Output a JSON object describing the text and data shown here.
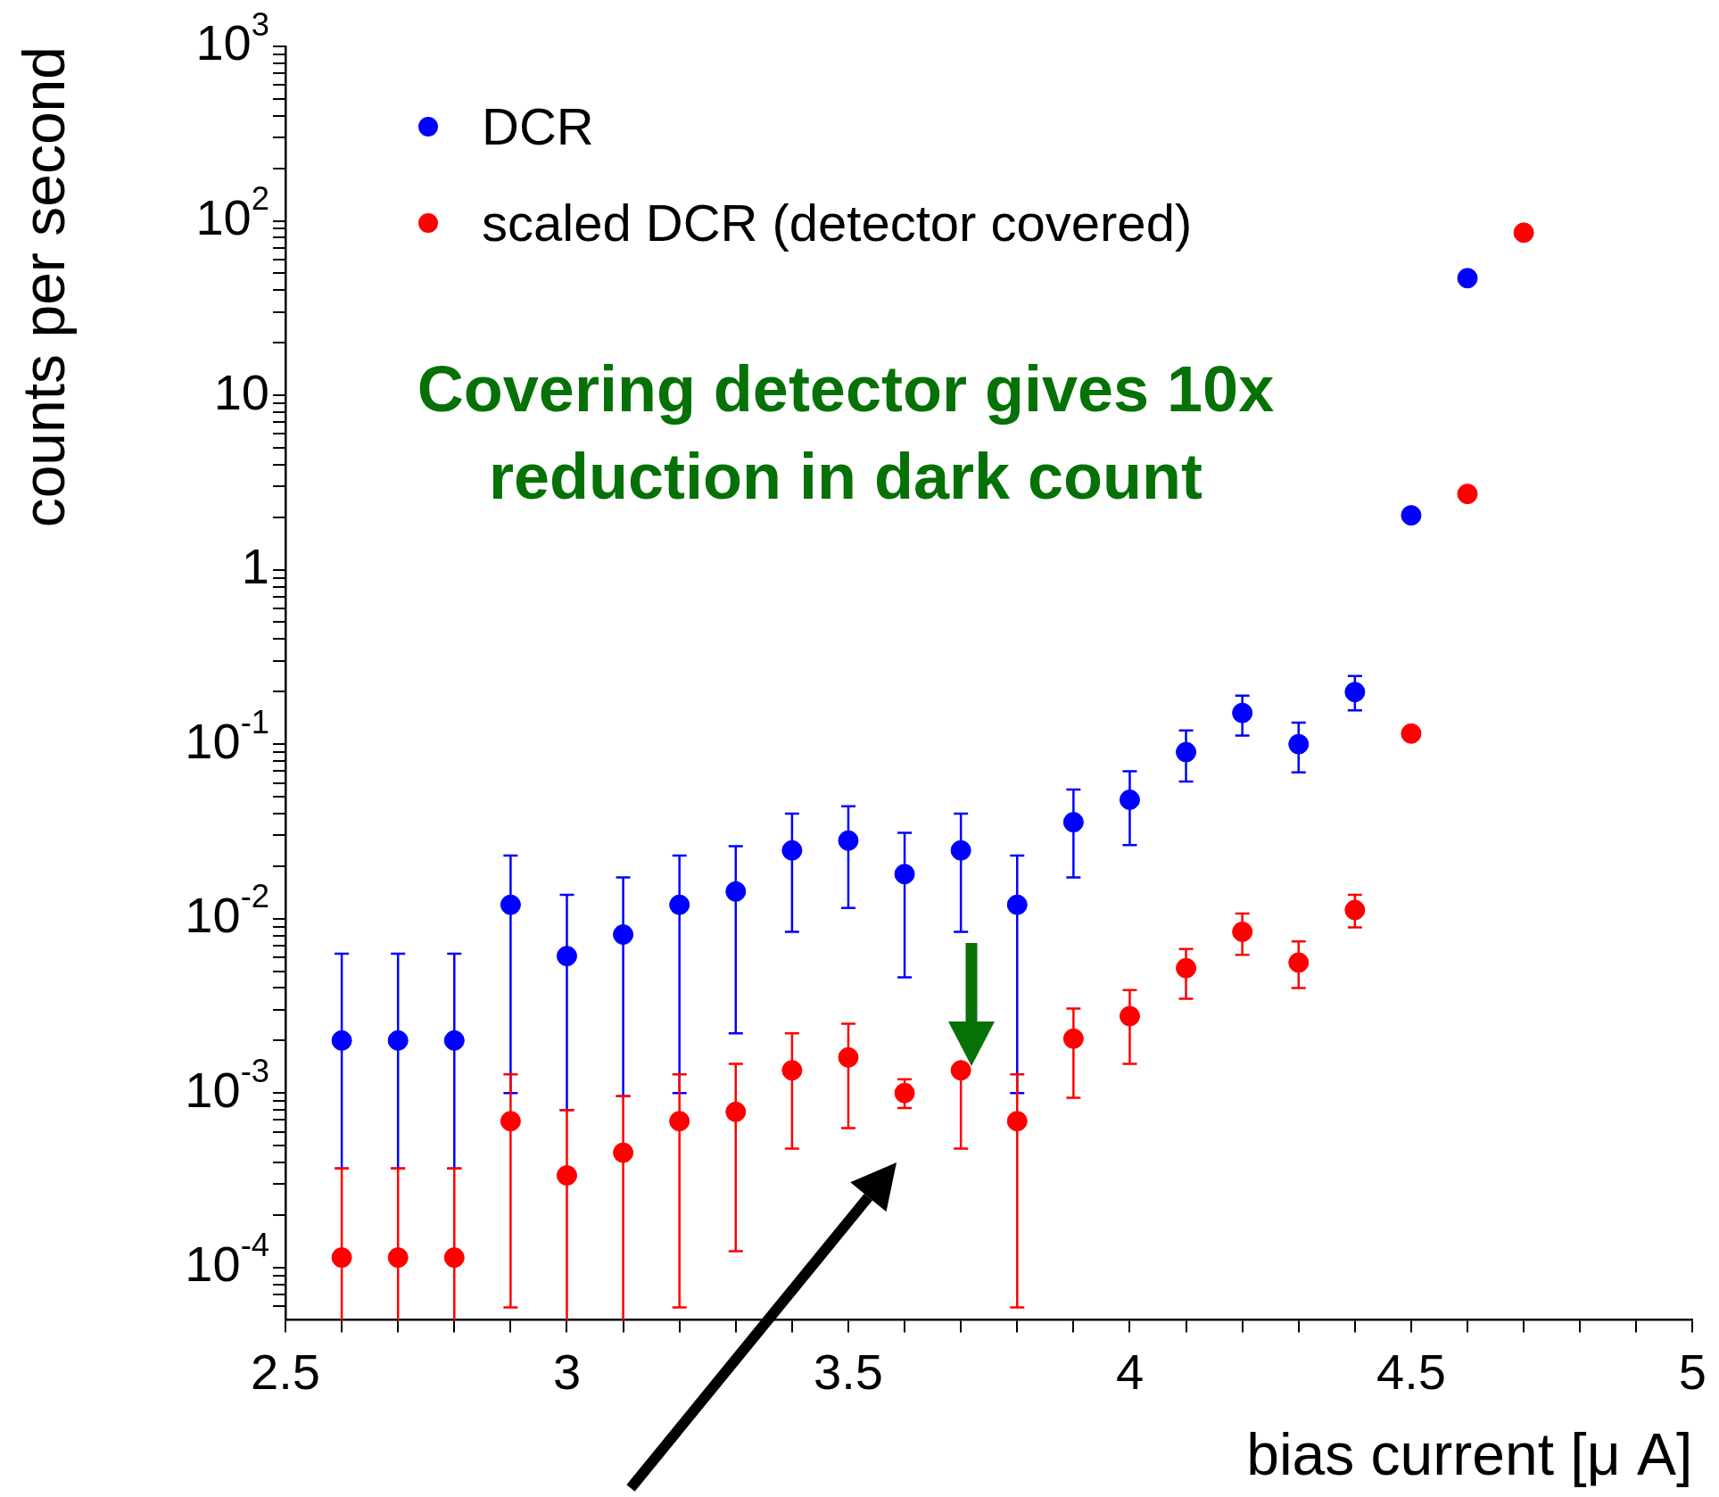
{
  "chart_data": {
    "type": "scatter",
    "xlabel": "bias current [μ A]",
    "ylabel": "counts per second",
    "annotations": [
      "Covering detector gives 10x reduction in dark count"
    ],
    "log": "y",
    "grid": false,
    "legend": "top left",
    "marker": "circle",
    "xlim": [
      2.5,
      5
    ],
    "ylim": [
      5e-05,
      1000
    ],
    "xticks": [
      2.5,
      {
        "value": 2.6,
        "label": null
      },
      {
        "value": 2.7,
        "label": null
      },
      {
        "value": 2.8,
        "label": null
      },
      {
        "value": 2.9,
        "label": null
      },
      3,
      {
        "value": 3.1,
        "label": null
      },
      {
        "value": 3.2,
        "label": null
      },
      {
        "value": 3.3,
        "label": null
      },
      {
        "value": 3.4,
        "label": null
      },
      3.5,
      {
        "value": 3.6,
        "label": null
      },
      {
        "value": 3.7,
        "label": null
      },
      {
        "value": 3.8,
        "label": null
      },
      {
        "value": 3.9,
        "label": null
      },
      4,
      {
        "value": 4.1,
        "label": null
      },
      {
        "value": 4.2,
        "label": null
      },
      {
        "value": 4.3,
        "label": null
      },
      {
        "value": 4.4,
        "label": null
      },
      4.5,
      {
        "value": 4.6,
        "label": null
      },
      {
        "value": 4.7,
        "label": null
      },
      {
        "value": 4.8,
        "label": null
      },
      {
        "value": 4.9,
        "label": null
      },
      5
    ],
    "yticks": [
      {
        "value": 6e-05,
        "label": null
      },
      {
        "value": 7e-05,
        "label": null
      },
      {
        "value": 8e-05,
        "label": null
      },
      {
        "value": 9e-05,
        "label": null
      },
      {
        "value": 0.0001,
        "label": "10$^{-4}$"
      },
      {
        "value": 0.0002,
        "label": null
      },
      {
        "value": 0.0003,
        "label": null
      },
      {
        "value": 0.0004,
        "label": null
      },
      {
        "value": 0.0005,
        "label": null
      },
      {
        "value": 0.0006,
        "label": null
      },
      {
        "value": 0.0007,
        "label": null
      },
      {
        "value": 0.0008,
        "label": null
      },
      {
        "value": 0.0009,
        "label": null
      },
      {
        "value": 0.001,
        "label": "10$^{-3}$"
      },
      {
        "value": 0.002,
        "label": null
      },
      {
        "value": 0.003,
        "label": null
      },
      {
        "value": 0.004,
        "label": null
      },
      {
        "value": 0.005,
        "label": null
      },
      {
        "value": 0.006,
        "label": null
      },
      {
        "value": 0.007,
        "label": null
      },
      {
        "value": 0.008,
        "label": null
      },
      {
        "value": 0.009,
        "label": null
      },
      {
        "value": 0.01,
        "label": "10$^{-2}$"
      },
      {
        "value": 0.02,
        "label": null
      },
      {
        "value": 0.03,
        "label": null
      },
      {
        "value": 0.04,
        "label": null
      },
      {
        "value": 0.05,
        "label": null
      },
      {
        "value": 0.06,
        "label": null
      },
      {
        "value": 0.07,
        "label": null
      },
      {
        "value": 0.08,
        "label": null
      },
      {
        "value": 0.09,
        "label": null
      },
      {
        "value": 0.1,
        "label": "10$^{-1}$"
      },
      {
        "value": 0.2,
        "label": null
      },
      {
        "value": 0.3,
        "label": null
      },
      {
        "value": 0.4,
        "label": null
      },
      {
        "value": 0.5,
        "label": null
      },
      {
        "value": 0.6,
        "label": null
      },
      {
        "value": 0.7,
        "label": null
      },
      {
        "value": 0.8,
        "label": null
      },
      {
        "value": 0.9,
        "label": null
      },
      1,
      {
        "value": 2,
        "label": null
      },
      {
        "value": 3,
        "label": null
      },
      {
        "value": 4,
        "label": null
      },
      {
        "value": 5,
        "label": null
      },
      {
        "value": 6,
        "label": null
      },
      {
        "value": 7,
        "label": null
      },
      {
        "value": 8,
        "label": null
      },
      {
        "value": 9,
        "label": null
      },
      10,
      {
        "value": 20,
        "label": null
      },
      {
        "value": 30,
        "label": null
      },
      {
        "value": 40,
        "label": null
      },
      {
        "value": 50,
        "label": null
      },
      {
        "value": 60,
        "label": null
      },
      {
        "value": 70,
        "label": null
      },
      {
        "value": 80,
        "label": null
      },
      {
        "value": 90,
        "label": null
      },
      {
        "value": 100,
        "label": "10$^{2}$"
      },
      {
        "value": 200,
        "label": null
      },
      {
        "value": 300,
        "label": null
      },
      {
        "value": 400,
        "label": null
      },
      {
        "value": 500,
        "label": null
      },
      {
        "value": 600,
        "label": null
      },
      {
        "value": 700,
        "label": null
      },
      {
        "value": 800,
        "label": null
      },
      {
        "value": 900,
        "label": null
      },
      {
        "value": 1000,
        "label": "10$^{3}$"
      }
    ],
    "series": [
      {
        "name": "DCR",
        "color": "#0000ff",
        "x": [
          2.6,
          2.7,
          2.8,
          2.9,
          3.0,
          3.1,
          3.2,
          3.3,
          3.4,
          3.5,
          3.6,
          3.7,
          3.8,
          3.9,
          4.0,
          4.1,
          4.2,
          4.3,
          4.4,
          4.5,
          4.6
        ],
        "values": [
          0.002,
          0.002,
          0.002,
          0.012,
          0.0061,
          0.0081,
          0.012,
          0.0143,
          0.0246,
          0.028,
          0.018,
          0.0246,
          0.012,
          0.0357,
          0.048,
          0.09,
          0.151,
          0.1,
          0.199,
          2.05,
          46.9
        ],
        "errors": [
          [
            0.00037,
            0.0063
          ],
          [
            0.00037,
            0.0063
          ],
          [
            0.00037,
            0.0063
          ],
          [
            0.001,
            0.023
          ],
          [
            0.0008,
            0.0137
          ],
          [
            0.00096,
            0.0172
          ],
          [
            0.001,
            0.023
          ],
          [
            0.0022,
            0.026
          ],
          [
            0.0084,
            0.04
          ],
          [
            0.0115,
            0.044
          ],
          [
            0.0046,
            0.031
          ],
          [
            0.0084,
            0.04
          ],
          [
            0.001,
            0.023
          ],
          [
            0.0172,
            0.055
          ],
          [
            0.0264,
            0.07
          ],
          [
            0.061,
            0.12
          ],
          [
            0.112,
            0.19
          ],
          [
            0.069,
            0.133
          ],
          [
            0.156,
            0.246
          ],
          null,
          null
        ]
      },
      {
        "name": "scaled DCR (detector covered)",
        "color": "#ff0000",
        "x": [
          2.6,
          2.7,
          2.8,
          2.9,
          3.0,
          3.1,
          3.2,
          3.3,
          3.4,
          3.5,
          3.6,
          3.7,
          3.8,
          3.9,
          4.0,
          4.1,
          4.2,
          4.3,
          4.4,
          4.5,
          4.6,
          4.7
        ],
        "values": [
          0.000114,
          0.000114,
          0.000114,
          0.00069,
          0.000337,
          0.000455,
          0.00069,
          0.00078,
          0.00135,
          0.0016,
          0.001,
          0.00135,
          0.00069,
          0.00205,
          0.00276,
          0.0052,
          0.0084,
          0.0056,
          0.0112,
          0.115,
          2.72,
          85.5
        ],
        "errors": [
          [
            5e-05,
            0.00037
          ],
          [
            5e-05,
            0.00037
          ],
          [
            5e-05,
            0.00037
          ],
          [
            5.9e-05,
            0.00128
          ],
          [
            5e-05,
            0.0008
          ],
          [
            5e-05,
            0.00096
          ],
          [
            5.9e-05,
            0.00128
          ],
          [
            0.000124,
            0.00147
          ],
          [
            0.00048,
            0.0022
          ],
          [
            0.00063,
            0.0025
          ],
          [
            0.00082,
            0.0012
          ],
          [
            0.00048,
            0.00135
          ],
          [
            5.9e-05,
            0.00128
          ],
          [
            0.00094,
            0.00305
          ],
          [
            0.00147,
            0.0039
          ],
          [
            0.00347,
            0.0067
          ],
          [
            0.0062,
            0.0107
          ],
          [
            0.004,
            0.0074
          ],
          [
            0.0089,
            0.0137
          ],
          null,
          null,
          null
        ]
      }
    ]
  }
}
